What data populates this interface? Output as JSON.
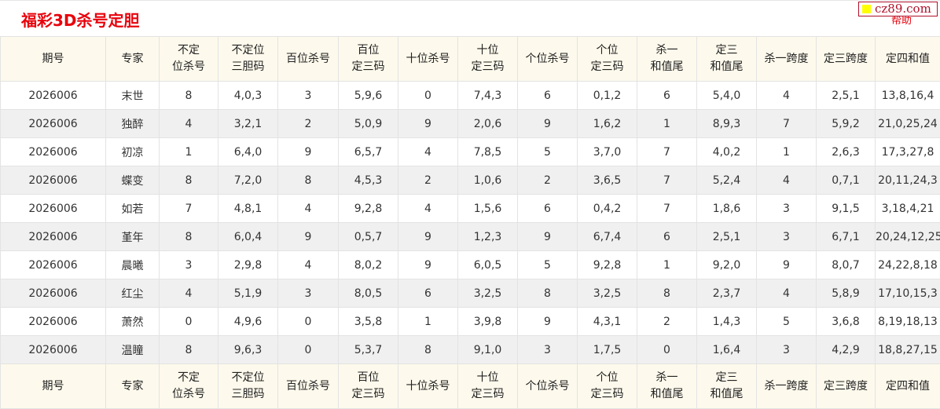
{
  "header": {
    "title": "福彩3D杀号定胆",
    "help": "帮助",
    "watermark": "cz89.com"
  },
  "columns": [
    [
      "期号"
    ],
    [
      "专家"
    ],
    [
      "不定",
      "位杀号"
    ],
    [
      "不定位",
      "三胆码"
    ],
    [
      "百位杀号"
    ],
    [
      "百位",
      "定三码"
    ],
    [
      "十位杀号"
    ],
    [
      "十位",
      "定三码"
    ],
    [
      "个位杀号"
    ],
    [
      "个位",
      "定三码"
    ],
    [
      "杀一",
      "和值尾"
    ],
    [
      "定三",
      "和值尾"
    ],
    [
      "杀一跨度"
    ],
    [
      "定三跨度"
    ],
    [
      "定四和值"
    ]
  ],
  "rows": [
    [
      "2026006",
      "末世",
      "8",
      "4,0,3",
      "3",
      "5,9,6",
      "0",
      "7,4,3",
      "6",
      "0,1,2",
      "6",
      "5,4,0",
      "4",
      "2,5,1",
      "13,8,16,4"
    ],
    [
      "2026006",
      "独醉",
      "4",
      "3,2,1",
      "2",
      "5,0,9",
      "9",
      "2,0,6",
      "9",
      "1,6,2",
      "1",
      "8,9,3",
      "7",
      "5,9,2",
      "21,0,25,24"
    ],
    [
      "2026006",
      "初凉",
      "1",
      "6,4,0",
      "9",
      "6,5,7",
      "4",
      "7,8,5",
      "5",
      "3,7,0",
      "7",
      "4,0,2",
      "1",
      "2,6,3",
      "17,3,27,8"
    ],
    [
      "2026006",
      "蝶变",
      "8",
      "7,2,0",
      "8",
      "4,5,3",
      "2",
      "1,0,6",
      "2",
      "3,6,5",
      "7",
      "5,2,4",
      "4",
      "0,7,1",
      "20,11,24,3"
    ],
    [
      "2026006",
      "如若",
      "7",
      "4,8,1",
      "4",
      "9,2,8",
      "4",
      "1,5,6",
      "6",
      "0,4,2",
      "7",
      "1,8,6",
      "3",
      "9,1,5",
      "3,18,4,21"
    ],
    [
      "2026006",
      "堇年",
      "8",
      "6,0,4",
      "9",
      "0,5,7",
      "9",
      "1,2,3",
      "9",
      "6,7,4",
      "6",
      "2,5,1",
      "3",
      "6,7,1",
      "20,24,12,25"
    ],
    [
      "2026006",
      "晨曦",
      "3",
      "2,9,8",
      "4",
      "8,0,2",
      "9",
      "6,0,5",
      "5",
      "9,2,8",
      "1",
      "9,2,0",
      "9",
      "8,0,7",
      "24,22,8,18"
    ],
    [
      "2026006",
      "红尘",
      "4",
      "5,1,9",
      "3",
      "8,0,5",
      "6",
      "3,2,5",
      "8",
      "3,2,5",
      "8",
      "2,3,7",
      "4",
      "5,8,9",
      "17,10,15,3"
    ],
    [
      "2026006",
      "萧然",
      "0",
      "4,9,6",
      "0",
      "3,5,8",
      "1",
      "3,9,8",
      "9",
      "4,3,1",
      "2",
      "1,4,3",
      "5",
      "3,6,8",
      "8,19,18,13"
    ],
    [
      "2026006",
      "温瞳",
      "8",
      "9,6,3",
      "0",
      "5,3,7",
      "8",
      "9,1,0",
      "3",
      "1,7,5",
      "0",
      "1,6,4",
      "3",
      "4,2,9",
      "18,8,27,15"
    ]
  ],
  "colors": {
    "title": "#e8000b",
    "header_bg": "#fdf9ec",
    "alt_row": "#f0f0f0"
  }
}
